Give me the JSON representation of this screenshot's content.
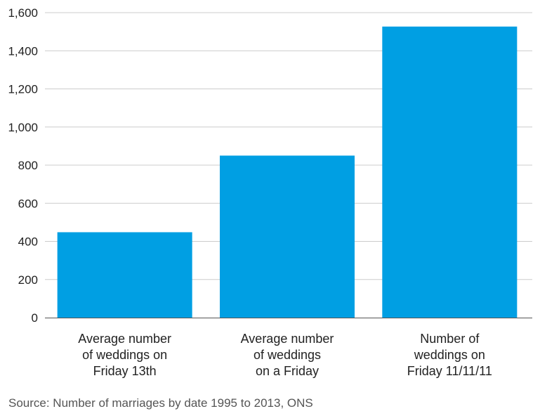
{
  "chart_data": {
    "type": "bar",
    "categories": [
      [
        "Average number",
        "of weddings on",
        "Friday 13th"
      ],
      [
        "Average number",
        "of weddings",
        "on a Friday"
      ],
      [
        "Number of",
        "weddings on",
        "Friday 11/11/11"
      ]
    ],
    "values": [
      448,
      850,
      1527
    ],
    "ylim": [
      0,
      1600
    ],
    "yticks": [
      0,
      200,
      400,
      600,
      800,
      1000,
      1200,
      1400,
      1600
    ],
    "ytick_labels": [
      "0",
      "200",
      "400",
      "600",
      "800",
      "1,000",
      "1,200",
      "1,400",
      "1,600"
    ],
    "grid": true,
    "bar_color": "#009fe3",
    "grid_color": "#cccccc",
    "axis_color": "#555555"
  },
  "source": "Source: Number of marriages by date 1995 to 2013, ONS"
}
